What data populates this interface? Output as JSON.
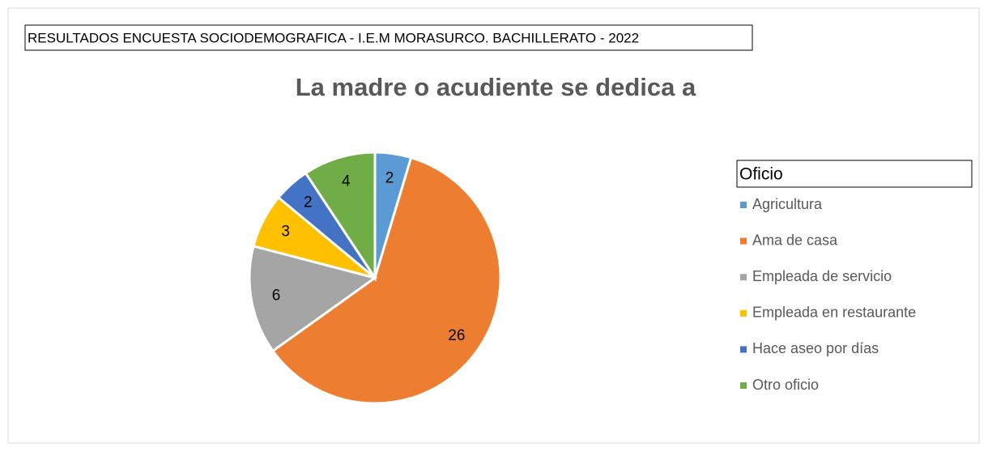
{
  "chart_data": {
    "type": "pie",
    "header": "RESULTADOS ENCUESTA SOCIODEMOGRAFICA - I.E.M MORASURCO. BACHILLERATO - 2022",
    "title": "La madre o acudiente se dedica a",
    "legend_title": "Oficio",
    "categories": [
      "Agricultura",
      "Ama de casa",
      "Empleada de servicio",
      "Empleada en restaurante",
      "Hace aseo por días",
      "Otro oficio"
    ],
    "values": [
      2,
      26,
      6,
      3,
      2,
      4
    ],
    "colors": [
      "#5b9bd5",
      "#ed7d31",
      "#a5a5a5",
      "#ffc000",
      "#4472c4",
      "#70ad47"
    ],
    "legend": "right"
  }
}
